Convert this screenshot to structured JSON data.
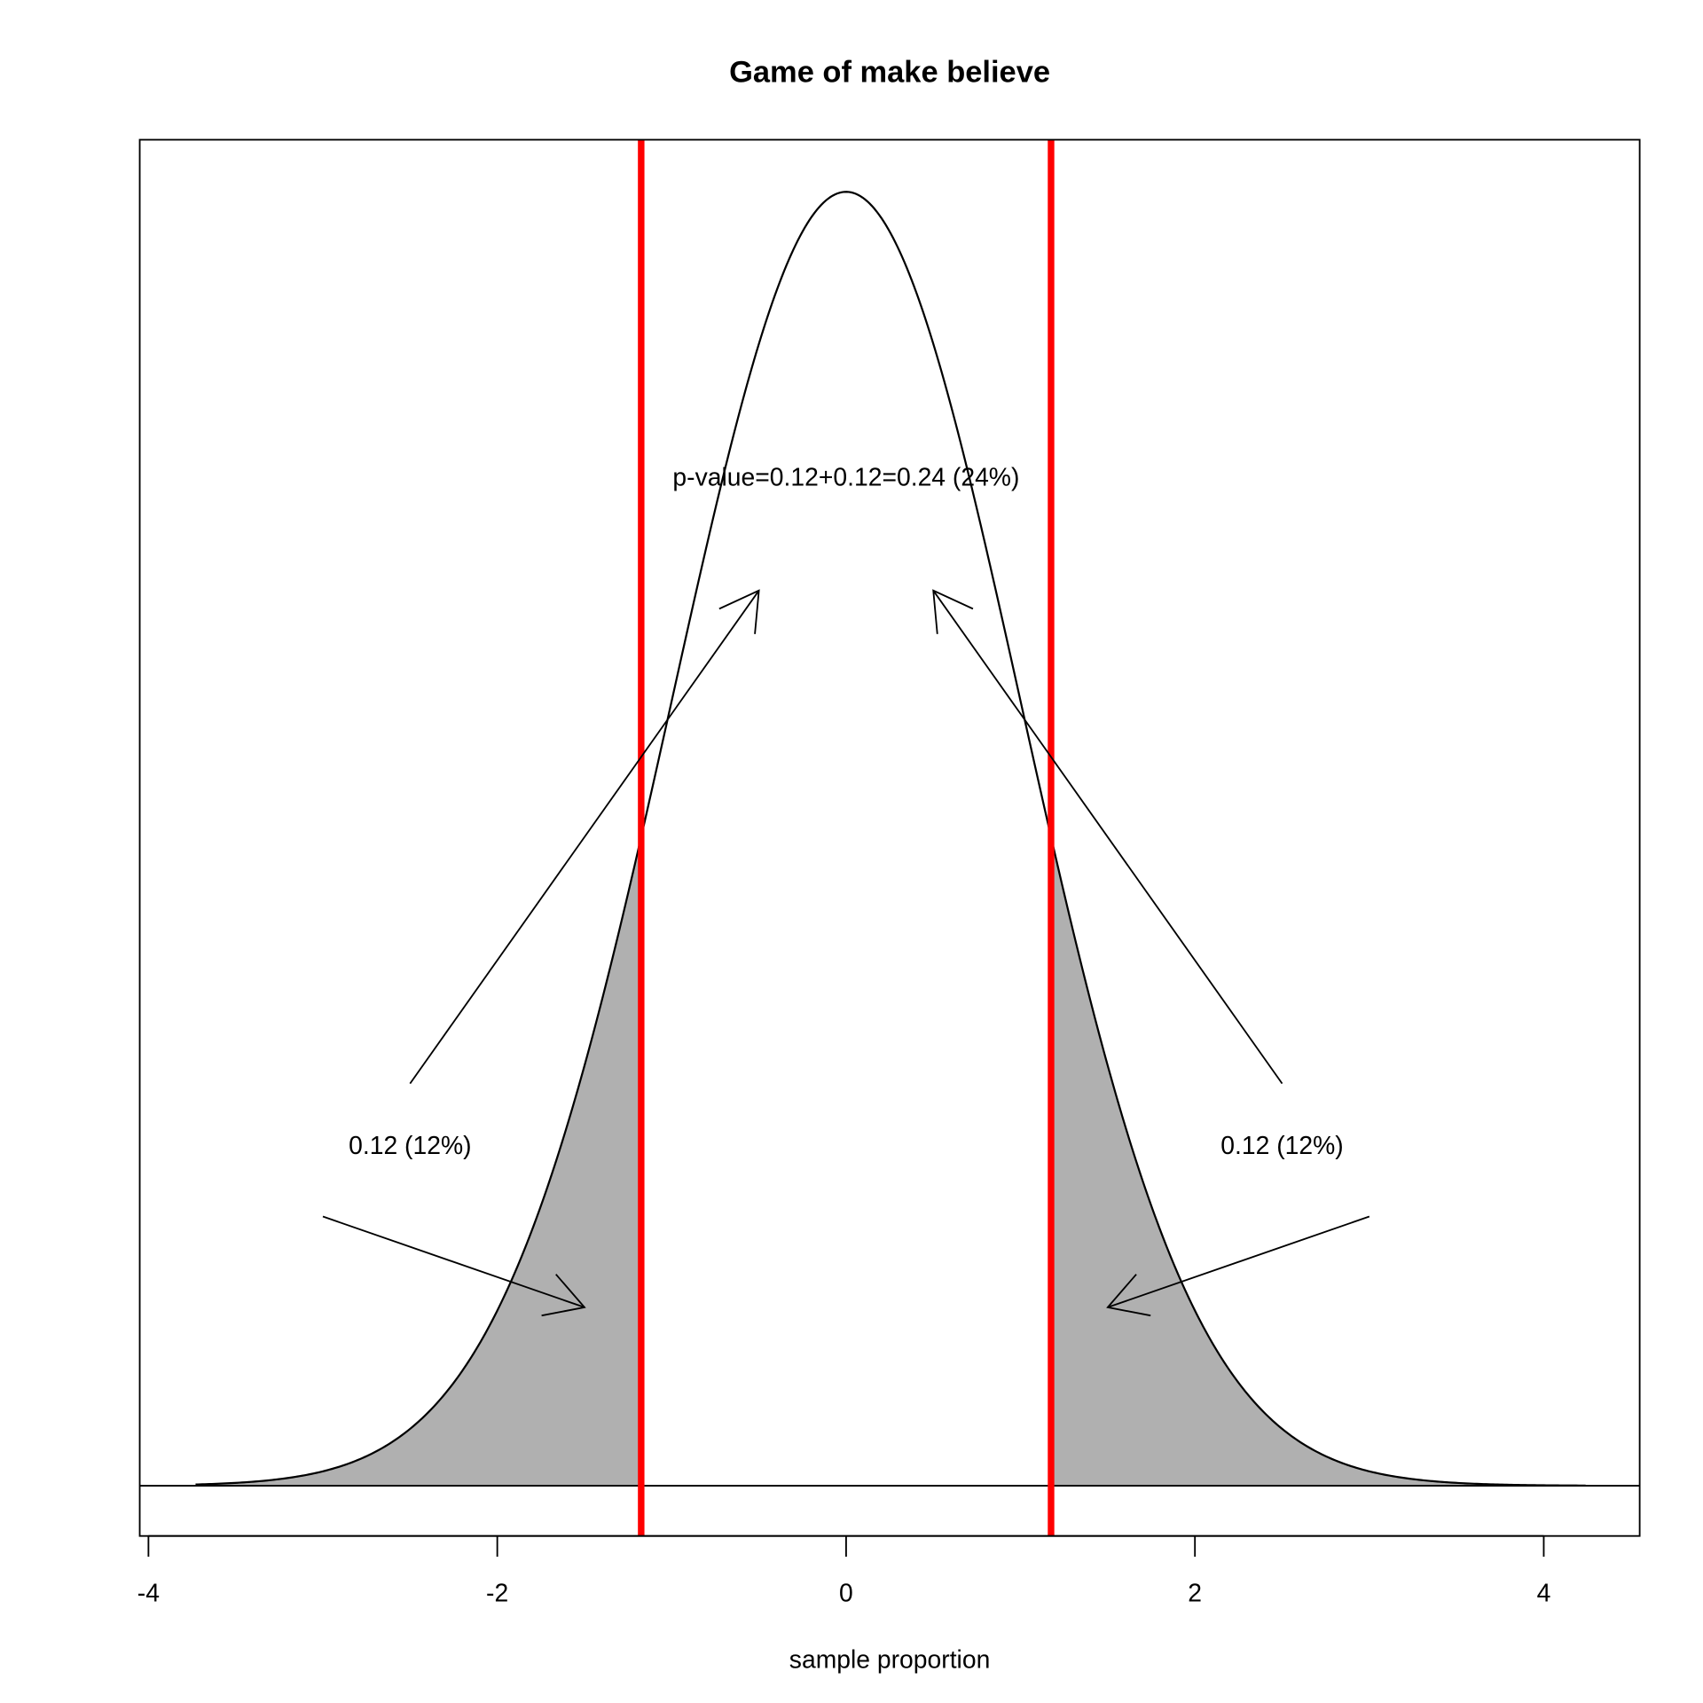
{
  "chart_data": {
    "type": "area",
    "title": "Game of make believe",
    "xlabel": "sample proportion",
    "ylabel": "",
    "xlim": [
      -4.05,
      4.55
    ],
    "ylim": [
      -0.0155,
      0.415
    ],
    "x_ticks": [
      -4,
      -2,
      0,
      2,
      4
    ],
    "x_tick_labels": [
      "-4",
      "-2",
      "0",
      "2",
      "4"
    ],
    "y_axis_shown": false,
    "grid": false,
    "curve": {
      "distribution": "standard normal density",
      "x_range": [
        -3.73,
        4.24
      ],
      "color": "#000000"
    },
    "shaded_tails": {
      "left_upper": -1.175,
      "right_lower": 1.175,
      "fill": "#b0b0b0"
    },
    "critical_lines": {
      "x": [
        -1.175,
        1.175
      ],
      "color": "#ff0000"
    },
    "baseline_y": 0,
    "annotations": [
      {
        "text": "p-value=0.12+0.12=0.24 (24%)",
        "x": 0,
        "y": 0.311
      },
      {
        "text": "0.12 (12%)",
        "x": -2.5,
        "y": 0.105
      },
      {
        "text": "0.12 (12%)",
        "x": 2.5,
        "y": 0.105
      }
    ],
    "arrows": [
      {
        "from": [
          -2.5,
          0.124
        ],
        "to": [
          -0.5,
          0.276
        ]
      },
      {
        "from": [
          2.5,
          0.124
        ],
        "to": [
          0.5,
          0.276
        ]
      },
      {
        "from": [
          -3.0,
          0.083
        ],
        "to": [
          -1.5,
          0.055
        ]
      },
      {
        "from": [
          3.0,
          0.083
        ],
        "to": [
          1.5,
          0.055
        ]
      }
    ]
  }
}
